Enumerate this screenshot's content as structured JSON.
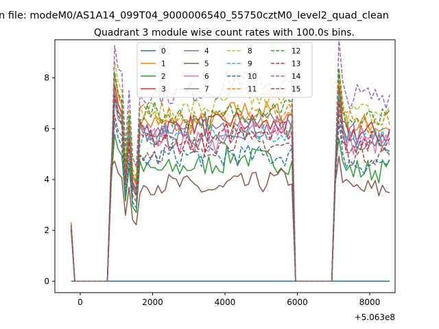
{
  "chart_data": {
    "type": "line",
    "suptitle": "n file: modeM0/AS1A14_099T04_9000006540_55750cztM0_level2_quad_clean",
    "title": "Quadrant 3 module wise count rates with 100.0s bins.",
    "xlabel": "",
    "ylabel": "",
    "x_offset_label": "+5.063e8",
    "xlim": [
      -700,
      8700
    ],
    "ylim": [
      -0.45,
      9.5
    ],
    "x_ticks": [
      0,
      2000,
      4000,
      6000,
      8000
    ],
    "x_tick_labels": [
      "0",
      "2000",
      "4000",
      "6000",
      "8000"
    ],
    "y_ticks": [
      0,
      2,
      4,
      6,
      8
    ],
    "y_tick_labels": [
      "0",
      "2",
      "4",
      "6",
      "8"
    ],
    "grid": false,
    "legend_position": "top-center",
    "legend_columns": 4,
    "series": [
      {
        "name": "0",
        "color": "#1f77b4",
        "style": "solid",
        "level": 0
      },
      {
        "name": "1",
        "color": "#ff7f0e",
        "style": "solid",
        "level": 6.3
      },
      {
        "name": "2",
        "color": "#2ca02c",
        "style": "solid",
        "level": 4.5
      },
      {
        "name": "3",
        "color": "#d62728",
        "style": "solid",
        "level": 6.0
      },
      {
        "name": "4",
        "color": "#9467bd",
        "style": "solid",
        "level": 5.9
      },
      {
        "name": "5",
        "color": "#8c564b",
        "style": "solid",
        "level": 3.7
      },
      {
        "name": "6",
        "color": "#e377c2",
        "style": "solid",
        "level": 5.6
      },
      {
        "name": "7",
        "color": "#7f7f7f",
        "style": "solid",
        "level": 5.8
      },
      {
        "name": "8",
        "color": "#bcbd22",
        "style": "dashed",
        "level": 6.8
      },
      {
        "name": "9",
        "color": "#17becf",
        "style": "dashed",
        "level": 5.7
      },
      {
        "name": "10",
        "color": "#1f77b4",
        "style": "dashed",
        "level": 4.8
      },
      {
        "name": "11",
        "color": "#ff7f0e",
        "style": "dashed",
        "level": 6.4
      },
      {
        "name": "12",
        "color": "#2ca02c",
        "style": "dashed",
        "level": 6.5
      },
      {
        "name": "13",
        "color": "#d62728",
        "style": "dashed",
        "level": 5.6
      },
      {
        "name": "14",
        "color": "#9467bd",
        "style": "dashed",
        "level": 7.5
      },
      {
        "name": "15",
        "color": "#8c564b",
        "style": "dashed",
        "level": 5.2
      }
    ],
    "segments": [
      {
        "start": -250,
        "end": -150,
        "value_start": 2.2
      },
      {
        "start": -150,
        "end": 750,
        "zero": true
      },
      {
        "start": 850,
        "end": 5850,
        "active": true
      },
      {
        "start": 5950,
        "end": 6950,
        "zero": true
      },
      {
        "start": 7050,
        "end": 8550,
        "active": true
      }
    ]
  }
}
